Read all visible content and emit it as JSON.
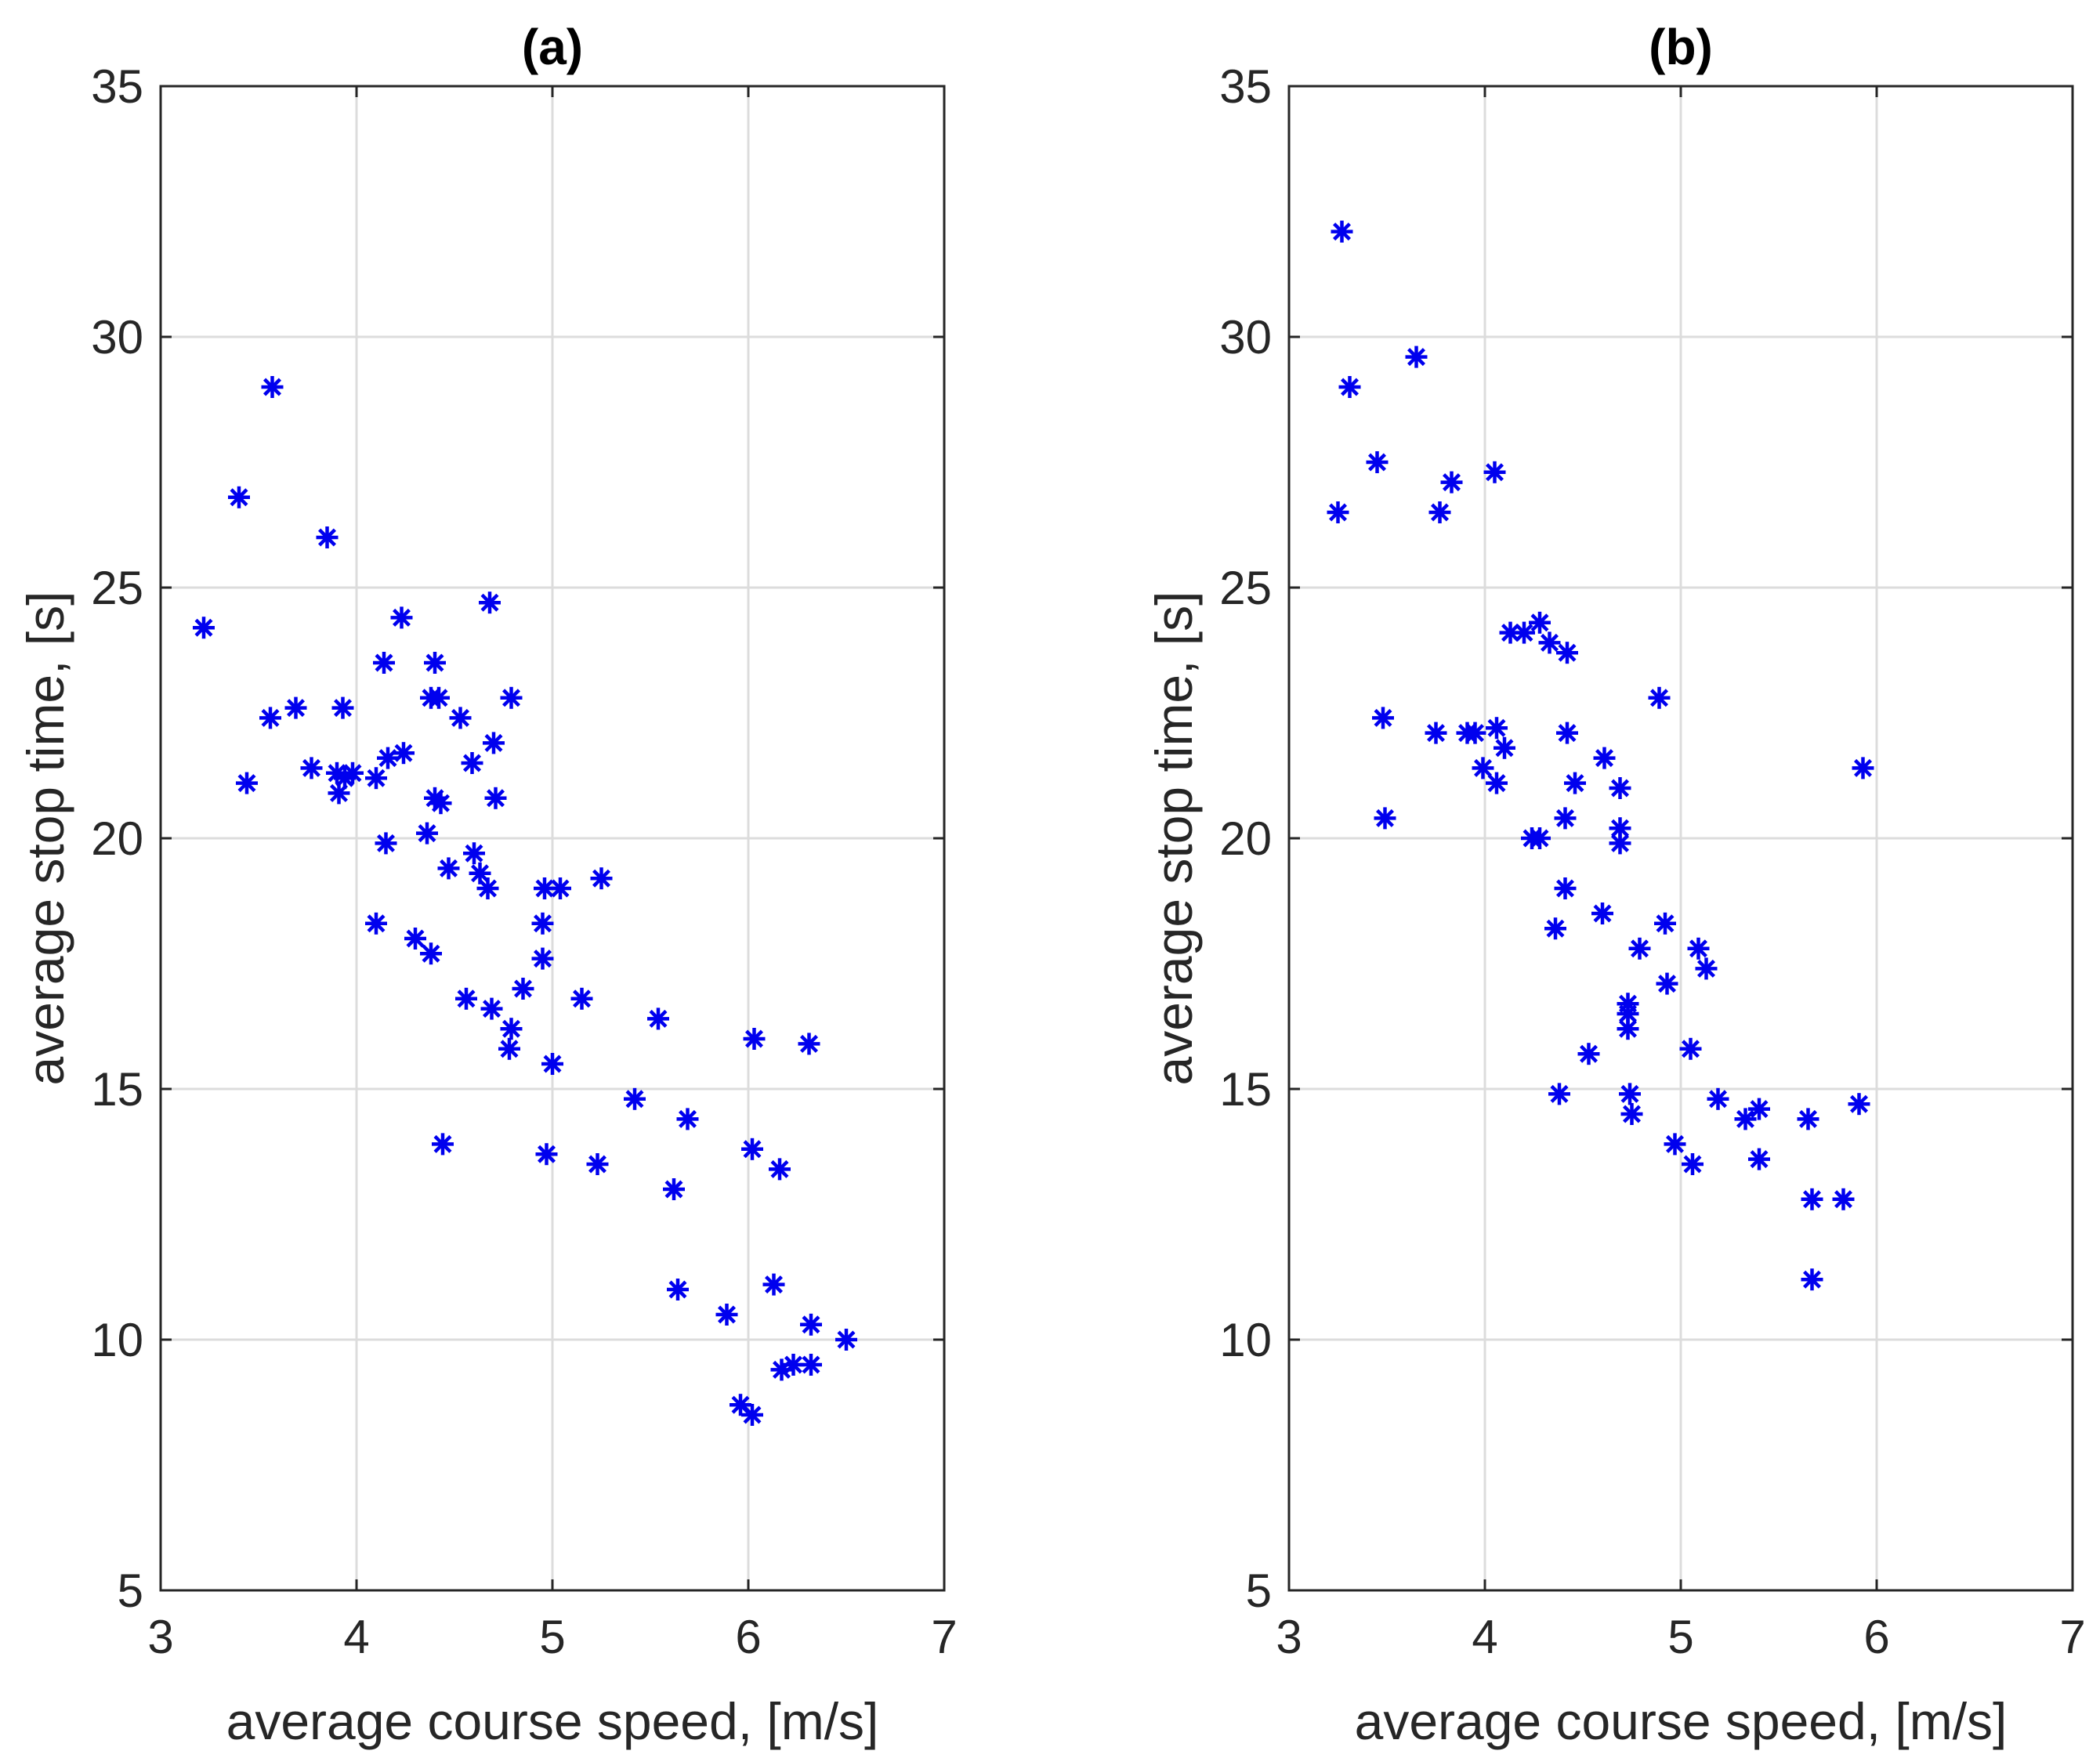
{
  "chart_data": [
    {
      "type": "scatter",
      "title": "(a)",
      "xlabel": "average course speed, [m/s]",
      "ylabel": "average stop time, [s]",
      "xlim": [
        3,
        7
      ],
      "ylim": [
        5,
        35
      ],
      "xticks": [
        3,
        4,
        5,
        6,
        7
      ],
      "yticks": [
        5,
        10,
        15,
        20,
        25,
        30,
        35
      ],
      "grid": true,
      "marker": "asterisk",
      "color": "#0000ee",
      "points": [
        [
          3.57,
          29.0
        ],
        [
          3.4,
          26.8
        ],
        [
          3.85,
          26.0
        ],
        [
          3.22,
          24.2
        ],
        [
          4.68,
          24.7
        ],
        [
          4.23,
          24.4
        ],
        [
          4.14,
          23.5
        ],
        [
          4.4,
          23.5
        ],
        [
          3.56,
          22.4
        ],
        [
          3.69,
          22.6
        ],
        [
          3.93,
          22.6
        ],
        [
          4.38,
          22.8
        ],
        [
          4.42,
          22.8
        ],
        [
          4.53,
          22.4
        ],
        [
          4.79,
          22.8
        ],
        [
          4.24,
          21.7
        ],
        [
          4.16,
          21.6
        ],
        [
          4.7,
          21.9
        ],
        [
          3.77,
          21.4
        ],
        [
          3.44,
          21.1
        ],
        [
          3.9,
          21.3
        ],
        [
          3.94,
          21.2
        ],
        [
          3.98,
          21.3
        ],
        [
          4.1,
          21.2
        ],
        [
          3.91,
          20.9
        ],
        [
          4.59,
          21.5
        ],
        [
          4.4,
          20.8
        ],
        [
          4.43,
          20.7
        ],
        [
          4.71,
          20.8
        ],
        [
          4.36,
          20.1
        ],
        [
          4.15,
          19.9
        ],
        [
          4.6,
          19.7
        ],
        [
          4.63,
          19.3
        ],
        [
          4.47,
          19.4
        ],
        [
          4.67,
          19.0
        ],
        [
          4.96,
          19.0
        ],
        [
          5.04,
          19.0
        ],
        [
          5.25,
          19.2
        ],
        [
          4.95,
          18.3
        ],
        [
          4.1,
          18.3
        ],
        [
          4.3,
          18.0
        ],
        [
          4.38,
          17.7
        ],
        [
          4.95,
          17.6
        ],
        [
          4.85,
          17.0
        ],
        [
          4.56,
          16.8
        ],
        [
          4.69,
          16.6
        ],
        [
          5.15,
          16.8
        ],
        [
          5.54,
          16.4
        ],
        [
          4.79,
          16.2
        ],
        [
          4.78,
          15.8
        ],
        [
          6.03,
          16.0
        ],
        [
          6.31,
          15.9
        ],
        [
          5.0,
          15.5
        ],
        [
          5.42,
          14.8
        ],
        [
          5.69,
          14.4
        ],
        [
          4.44,
          13.9
        ],
        [
          4.97,
          13.7
        ],
        [
          5.23,
          13.5
        ],
        [
          6.02,
          13.8
        ],
        [
          6.16,
          13.4
        ],
        [
          5.62,
          13.0
        ],
        [
          5.64,
          11.0
        ],
        [
          6.13,
          11.1
        ],
        [
          5.89,
          10.5
        ],
        [
          6.32,
          10.3
        ],
        [
          6.5,
          10.0
        ],
        [
          6.23,
          9.5
        ],
        [
          6.17,
          9.4
        ],
        [
          6.32,
          9.5
        ],
        [
          5.96,
          8.7
        ],
        [
          6.02,
          8.5
        ]
      ]
    },
    {
      "type": "scatter",
      "title": "(b)",
      "xlabel": "average course speed, [m/s]",
      "ylabel": "average stop time, [s]",
      "xlim": [
        3,
        7
      ],
      "ylim": [
        5,
        35
      ],
      "xticks": [
        3,
        4,
        5,
        6,
        7
      ],
      "yticks": [
        5,
        10,
        15,
        20,
        25,
        30,
        35
      ],
      "grid": true,
      "marker": "asterisk",
      "color": "#0000ee",
      "points": [
        [
          3.27,
          32.1
        ],
        [
          3.65,
          29.6
        ],
        [
          3.31,
          29.0
        ],
        [
          3.45,
          27.5
        ],
        [
          3.83,
          27.1
        ],
        [
          4.05,
          27.3
        ],
        [
          3.25,
          26.5
        ],
        [
          3.77,
          26.5
        ],
        [
          4.28,
          24.3
        ],
        [
          4.13,
          24.1
        ],
        [
          4.2,
          24.1
        ],
        [
          4.33,
          23.9
        ],
        [
          4.42,
          23.7
        ],
        [
          4.89,
          22.8
        ],
        [
          3.48,
          22.4
        ],
        [
          3.75,
          22.1
        ],
        [
          3.91,
          22.1
        ],
        [
          4.06,
          22.2
        ],
        [
          4.42,
          22.1
        ],
        [
          3.95,
          22.1
        ],
        [
          4.1,
          21.8
        ],
        [
          4.61,
          21.6
        ],
        [
          5.93,
          21.4
        ],
        [
          3.99,
          21.4
        ],
        [
          4.06,
          21.1
        ],
        [
          4.46,
          21.1
        ],
        [
          4.69,
          21.0
        ],
        [
          3.49,
          20.4
        ],
        [
          4.41,
          20.4
        ],
        [
          4.69,
          20.2
        ],
        [
          4.24,
          20.0
        ],
        [
          4.28,
          20.0
        ],
        [
          4.69,
          19.9
        ],
        [
          4.41,
          19.0
        ],
        [
          4.6,
          18.5
        ],
        [
          4.36,
          18.2
        ],
        [
          4.92,
          18.3
        ],
        [
          4.79,
          17.8
        ],
        [
          5.09,
          17.8
        ],
        [
          5.13,
          17.4
        ],
        [
          4.93,
          17.1
        ],
        [
          4.73,
          16.7
        ],
        [
          4.73,
          16.5
        ],
        [
          4.73,
          16.2
        ],
        [
          5.05,
          15.8
        ],
        [
          4.53,
          15.7
        ],
        [
          4.38,
          14.9
        ],
        [
          4.74,
          14.9
        ],
        [
          4.75,
          14.5
        ],
        [
          5.19,
          14.8
        ],
        [
          5.4,
          14.6
        ],
        [
          5.33,
          14.4
        ],
        [
          5.65,
          14.4
        ],
        [
          5.91,
          14.7
        ],
        [
          4.97,
          13.9
        ],
        [
          5.06,
          13.5
        ],
        [
          5.4,
          13.6
        ],
        [
          5.67,
          12.8
        ],
        [
          5.83,
          12.8
        ],
        [
          5.67,
          11.2
        ]
      ]
    }
  ]
}
